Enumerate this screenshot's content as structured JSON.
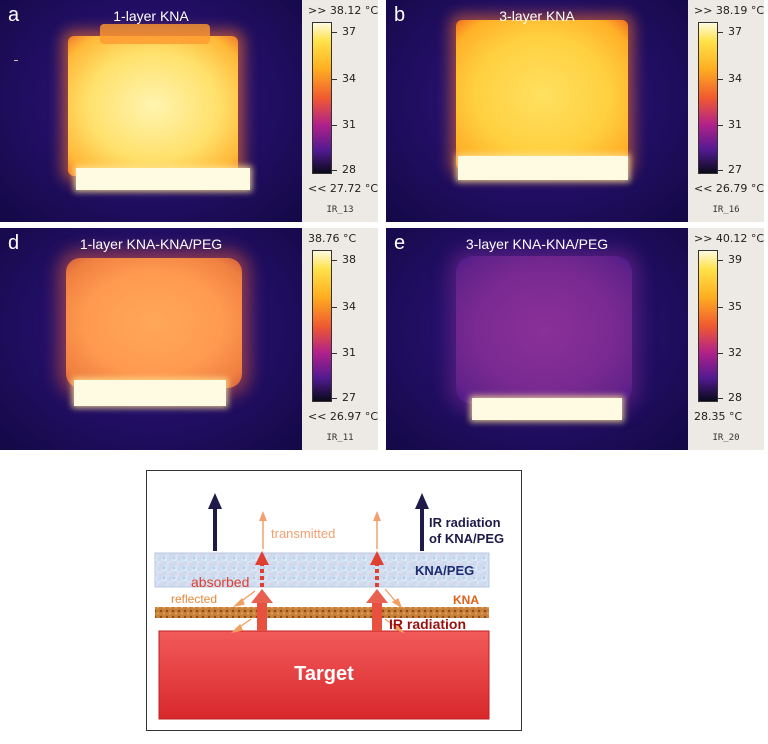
{
  "panels": [
    {
      "letter": "a",
      "title": "1-layer KNA",
      "max_label": ">> 38.12 °C",
      "min_label": "<< 27.72 °C",
      "ticks": [
        "37",
        "34",
        "31",
        "28"
      ],
      "ir_id": "IR_13"
    },
    {
      "letter": "b",
      "title": "3-layer KNA",
      "max_label": ">> 38.19 °C",
      "min_label": "<< 26.79 °C",
      "ticks": [
        "37",
        "34",
        "31",
        "27"
      ],
      "ir_id": "IR_16"
    },
    {
      "letter": "d",
      "title": "1-layer KNA-KNA/PEG",
      "max_label": "38.76 °C",
      "min_label": "<< 26.97 °C",
      "ticks": [
        "38",
        "34",
        "31",
        "27"
      ],
      "ir_id": "IR_11"
    },
    {
      "letter": "e",
      "title": "3-layer KNA-KNA/PEG",
      "max_label": ">> 40.12 °C",
      "min_label": "28.35 °C",
      "ticks": [
        "39",
        "35",
        "32",
        "28"
      ],
      "ir_id": "IR_20"
    }
  ],
  "diagram": {
    "transmitted": "transmitted",
    "absorbed": "absorbed",
    "reflected": "reflected",
    "ir_radiation_kna_peg_line1": "IR radiation",
    "ir_radiation_kna_peg_line2": "of KNA/PEG",
    "kna_peg": "KNA/PEG",
    "kna": "KNA",
    "ir_radiation": "IR radiation",
    "target": "Target"
  },
  "colors": {
    "dark_arrow": "#1e1a4a",
    "light_arrow": "#f2a070",
    "red_arrow": "#e04030",
    "orange_text": "#e8883a",
    "kna_peg_text": "#1e2a70",
    "kna_text": "#e06018",
    "ir_radiation_text": "#9a1010",
    "target_fill": "#e8383a"
  }
}
